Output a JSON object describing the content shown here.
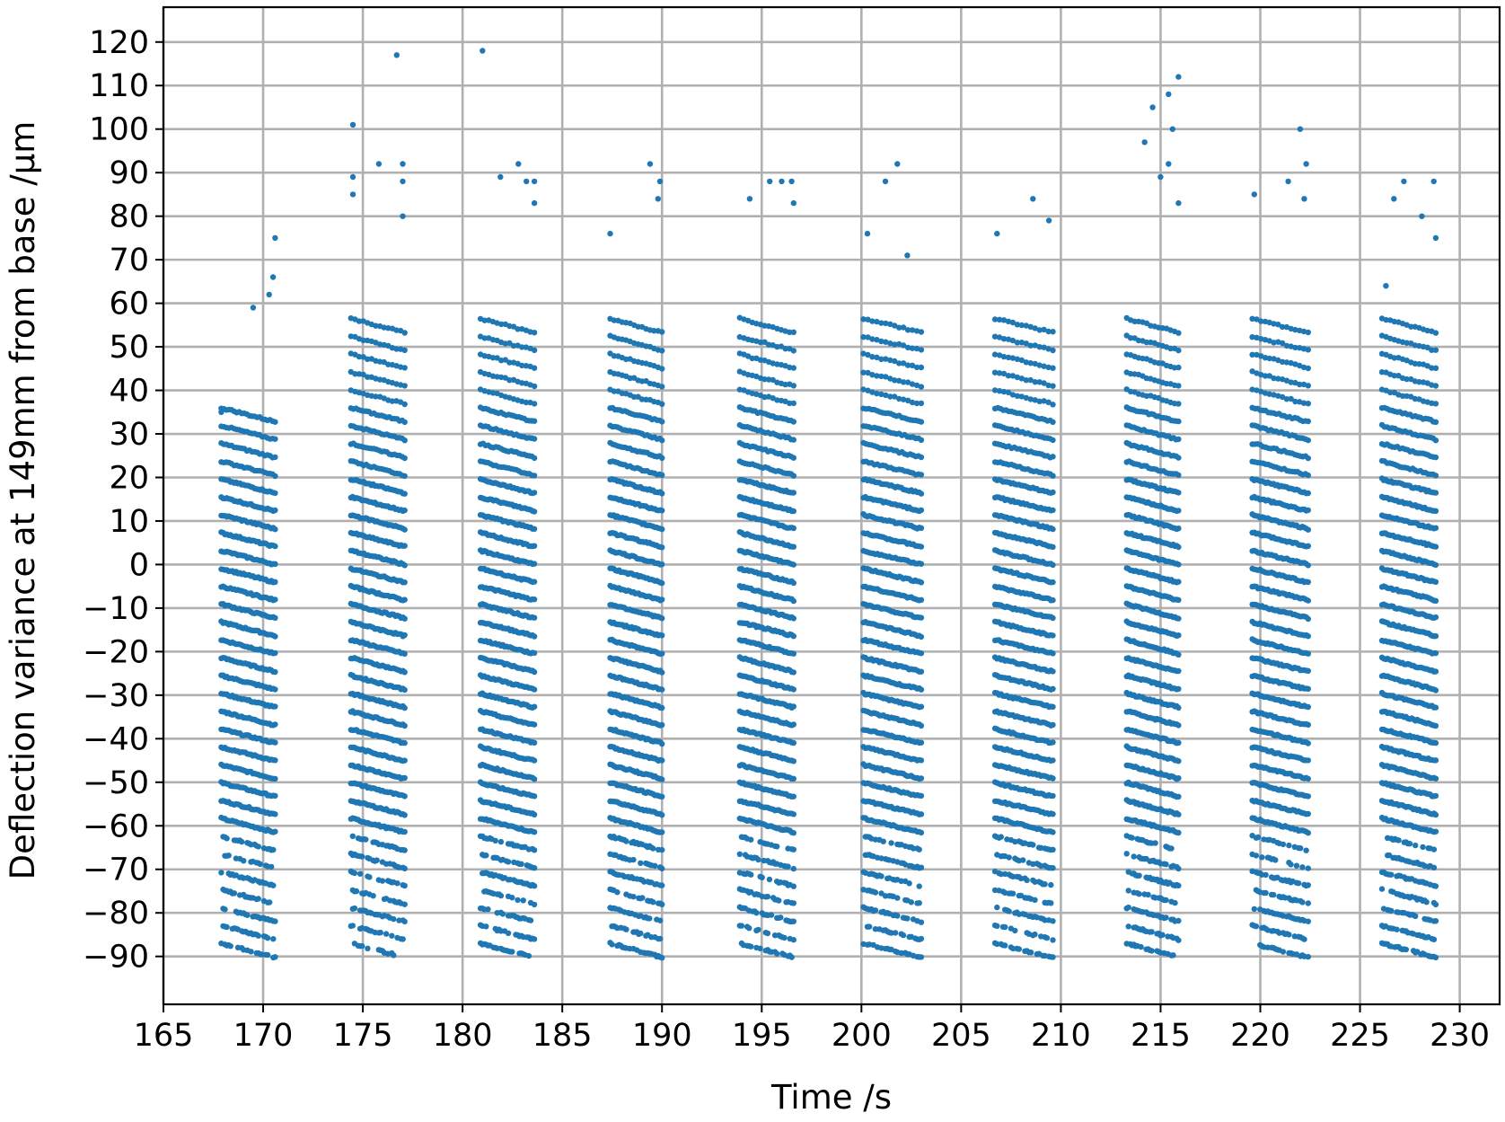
{
  "chart_data": {
    "type": "scatter",
    "xlabel": "Time /s",
    "ylabel": "Deflection variance at 149mm from base /μm",
    "xlim": [
      165,
      232
    ],
    "ylim": [
      -101,
      128
    ],
    "x_ticks": [
      165,
      170,
      175,
      180,
      185,
      190,
      195,
      200,
      205,
      210,
      215,
      220,
      225,
      230
    ],
    "y_ticks": [
      -90,
      -80,
      -70,
      -60,
      -50,
      -40,
      -30,
      -20,
      -10,
      0,
      10,
      20,
      30,
      40,
      50,
      60,
      70,
      80,
      90,
      100,
      110,
      120
    ],
    "grid": true,
    "marker_color": "#1f77b4",
    "series": [
      {
        "description": "Ten bursts of deflection samples; each burst spans about 2.6 s and consists of horizontal bands at roughly 4.1 μm spacing from about -88 μm to +58 μm, each band sloping down by about 3 μm over the burst, with sparse outlier points up to ~118 μm.",
        "bursts": [
          {
            "start": 167.9,
            "end": 170.6,
            "band_min": -87,
            "band_max": 36,
            "outliers": [
              [
                167.9,
                35
              ],
              [
                169.5,
                59
              ],
              [
                170.3,
                62
              ],
              [
                170.5,
                66
              ],
              [
                170.6,
                75
              ]
            ]
          },
          {
            "start": 174.4,
            "end": 177.1,
            "band_min": -87,
            "band_max": 58,
            "outliers": [
              [
                174.5,
                101
              ],
              [
                174.5,
                89
              ],
              [
                174.5,
                85
              ],
              [
                175.8,
                92
              ],
              [
                176.7,
                117
              ],
              [
                177.0,
                92
              ],
              [
                177.0,
                88
              ],
              [
                177.0,
                80
              ]
            ]
          },
          {
            "start": 180.9,
            "end": 183.6,
            "band_min": -87,
            "band_max": 58,
            "outliers": [
              [
                181.0,
                118
              ],
              [
                181.9,
                89
              ],
              [
                182.8,
                92
              ],
              [
                183.2,
                88
              ],
              [
                183.6,
                88
              ],
              [
                183.6,
                83
              ]
            ]
          },
          {
            "start": 187.4,
            "end": 190.0,
            "band_min": -87,
            "band_max": 58,
            "outliers": [
              [
                187.4,
                76
              ],
              [
                189.4,
                92
              ],
              [
                189.9,
                88
              ],
              [
                189.8,
                84
              ]
            ]
          },
          {
            "start": 193.9,
            "end": 196.6,
            "band_min": -87,
            "band_max": 58,
            "outliers": [
              [
                194.4,
                84
              ],
              [
                195.4,
                88
              ],
              [
                196.0,
                88
              ],
              [
                196.5,
                88
              ],
              [
                196.6,
                83
              ]
            ]
          },
          {
            "start": 200.1,
            "end": 203.0,
            "band_min": -87,
            "band_max": 58,
            "outliers": [
              [
                200.3,
                76
              ],
              [
                201.2,
                88
              ],
              [
                201.8,
                92
              ],
              [
                202.3,
                71
              ]
            ]
          },
          {
            "start": 206.7,
            "end": 209.6,
            "band_min": -87,
            "band_max": 58,
            "outliers": [
              [
                206.8,
                76
              ],
              [
                208.6,
                84
              ],
              [
                209.4,
                79
              ]
            ]
          },
          {
            "start": 213.3,
            "end": 215.9,
            "band_min": -87,
            "band_max": 58,
            "outliers": [
              [
                214.2,
                97
              ],
              [
                214.6,
                105
              ],
              [
                215.0,
                89
              ],
              [
                215.4,
                92
              ],
              [
                215.4,
                108
              ],
              [
                215.6,
                100
              ],
              [
                215.9,
                112
              ],
              [
                215.9,
                83
              ]
            ]
          },
          {
            "start": 219.6,
            "end": 222.4,
            "band_min": -87,
            "band_max": 58,
            "outliers": [
              [
                219.7,
                85
              ],
              [
                221.4,
                88
              ],
              [
                222.0,
                100
              ],
              [
                222.3,
                92
              ],
              [
                222.2,
                84
              ]
            ]
          },
          {
            "start": 226.1,
            "end": 228.8,
            "band_min": -87,
            "band_max": 58,
            "outliers": [
              [
                226.3,
                64
              ],
              [
                226.7,
                84
              ],
              [
                227.2,
                88
              ],
              [
                228.1,
                80
              ],
              [
                228.7,
                88
              ],
              [
                228.8,
                75
              ]
            ]
          }
        ],
        "band_spacing": 4.1,
        "band_slope_per_burst": -3.2
      }
    ]
  }
}
